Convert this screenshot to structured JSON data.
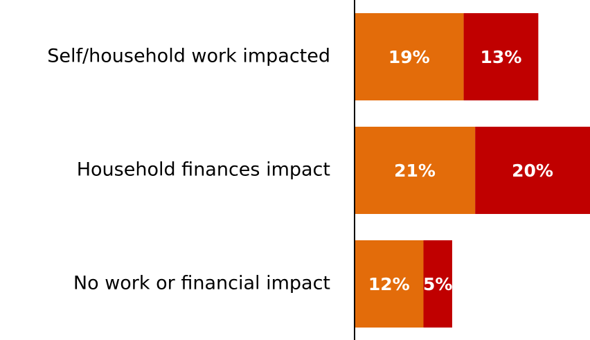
{
  "chart_data": {
    "type": "stacked-bar-horizontal",
    "categories": [
      "Self/household work impacted",
      "Household finances impact",
      "No work or financial impact"
    ],
    "series": [
      {
        "color": "#E36C0A",
        "values": [
          19,
          21,
          12
        ],
        "value_labels": [
          "19%",
          "21%",
          "12%"
        ]
      },
      {
        "color": "#C00000",
        "values": [
          13,
          20,
          5
        ],
        "value_labels": [
          "13%",
          "20%",
          "5%"
        ]
      }
    ],
    "xlim": [
      0,
      41
    ]
  }
}
